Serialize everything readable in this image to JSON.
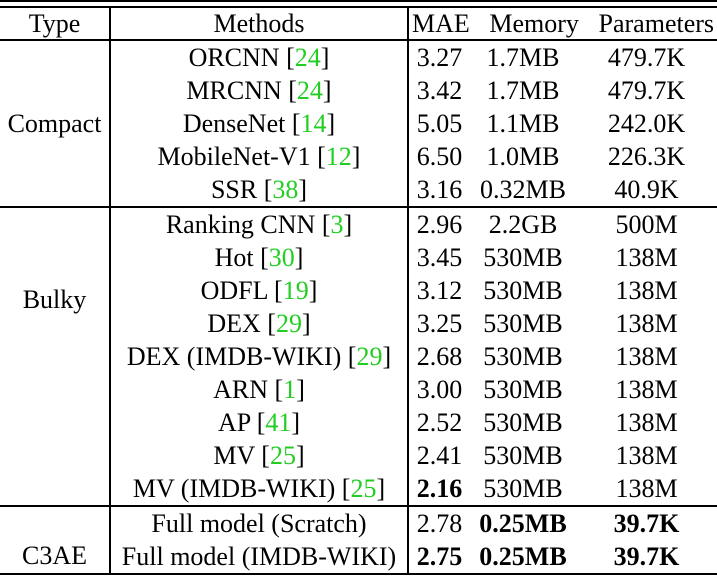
{
  "colors": {
    "text": "#000000",
    "background": "#ffffff",
    "citation_green": "#22CE22",
    "rule": "#000000"
  },
  "symbols": {
    "lb": "[",
    "rb": "]"
  },
  "table": {
    "header": {
      "type": "Type",
      "methods": "Methods",
      "mae": "MAE",
      "memory": "Memory",
      "parameters": "Parameters"
    },
    "groups": [
      {
        "type": "Compact",
        "rows": [
          {
            "m": "ORCNN",
            "cite": "24",
            "mae": "3.27",
            "mem": "1.7MB",
            "par": "479.7K"
          },
          {
            "m": "MRCNN",
            "cite": "24",
            "mae": "3.42",
            "mem": "1.7MB",
            "par": "479.7K"
          },
          {
            "m": "DenseNet",
            "cite": "14",
            "mae": "5.05",
            "mem": "1.1MB",
            "par": "242.0K"
          },
          {
            "m": "MobileNet-V1",
            "cite": "12",
            "mae": "6.50",
            "mem": "1.0MB",
            "par": "226.3K"
          },
          {
            "m": "SSR",
            "cite": "38",
            "mae": "3.16",
            "mem": "0.32MB",
            "par": "40.9K"
          }
        ]
      },
      {
        "type": "Bulky",
        "rows": [
          {
            "m": "Ranking CNN",
            "cite": "3",
            "mae": "2.96",
            "mem": "2.2GB",
            "par": "500M"
          },
          {
            "m": "Hot",
            "cite": "30",
            "mae": "3.45",
            "mem": "530MB",
            "par": "138M"
          },
          {
            "m": "ODFL",
            "cite": "19",
            "mae": "3.12",
            "mem": "530MB",
            "par": "138M"
          },
          {
            "m": "DEX",
            "cite": "29",
            "mae": "3.25",
            "mem": "530MB",
            "par": "138M"
          },
          {
            "m": "DEX (IMDB-WIKI)",
            "cite": "29",
            "mae": "2.68",
            "mem": "530MB",
            "par": "138M"
          },
          {
            "m": "ARN",
            "cite": "1",
            "mae": "3.00",
            "mem": "530MB",
            "par": "138M"
          },
          {
            "m": "AP",
            "cite": "41",
            "mae": "2.52",
            "mem": "530MB",
            "par": "138M"
          },
          {
            "m": "MV",
            "cite": "25",
            "mae": "2.41",
            "mem": "530MB",
            "par": "138M"
          },
          {
            "m": "MV (IMDB-WIKI)",
            "cite": "25",
            "mae": "2.16",
            "mem": "530MB",
            "par": "138M"
          }
        ]
      },
      {
        "type": "C3AE",
        "rows": [
          {
            "m": "Full model (Scratch)",
            "mae": "2.78",
            "mem": "0.25MB",
            "par": "39.7K"
          },
          {
            "m": "Full model (IMDB-WIKI)",
            "mae": "2.75",
            "mem": "0.25MB",
            "par": "39.7K"
          }
        ]
      }
    ]
  }
}
